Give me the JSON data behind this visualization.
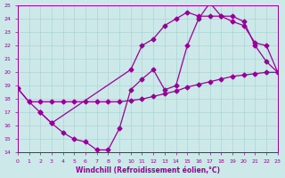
{
  "xlabel": "Windchill (Refroidissement éolien,°C)",
  "ylabel": "",
  "xlim": [
    0,
    23
  ],
  "ylim": [
    14,
    25
  ],
  "xticks": [
    0,
    1,
    2,
    3,
    4,
    5,
    6,
    7,
    8,
    9,
    10,
    11,
    12,
    13,
    14,
    15,
    16,
    17,
    18,
    19,
    20,
    21,
    22,
    23
  ],
  "yticks": [
    14,
    15,
    16,
    17,
    18,
    19,
    20,
    21,
    22,
    23,
    24,
    25
  ],
  "bg_color": "#cce8e8",
  "grid_color": "#aad4d4",
  "line_color": "#990099",
  "line1_x": [
    0,
    1,
    2,
    3,
    4,
    5,
    6,
    7,
    8,
    9,
    10,
    11,
    12,
    13,
    14,
    15,
    16,
    17,
    18,
    19,
    20,
    21,
    22,
    23
  ],
  "line1_y": [
    18.8,
    17.8,
    17.0,
    16.2,
    15.5,
    15.0,
    14.8,
    14.2,
    14.2,
    15.8,
    18.7,
    19.5,
    20.2,
    18.7,
    19.0,
    22.0,
    24.0,
    25.2,
    24.2,
    24.2,
    23.8,
    22.0,
    20.8,
    20.0
  ],
  "line2_x": [
    0,
    1,
    2,
    3,
    4,
    5,
    6,
    7,
    8,
    9,
    10,
    11,
    12,
    13,
    14,
    15,
    16,
    17,
    18,
    19,
    20,
    21,
    22,
    23
  ],
  "line2_y": [
    18.8,
    17.8,
    17.8,
    17.8,
    17.8,
    17.8,
    17.8,
    17.8,
    17.8,
    17.8,
    17.9,
    18.0,
    18.2,
    18.4,
    18.6,
    18.9,
    19.1,
    19.3,
    19.5,
    19.7,
    19.8,
    19.9,
    20.0,
    20.0
  ],
  "line3_x": [
    2,
    3,
    10,
    11,
    12,
    13,
    14,
    15,
    16,
    17,
    18,
    19,
    20,
    21,
    22,
    23
  ],
  "line3_y": [
    17.0,
    16.2,
    20.2,
    22.0,
    22.5,
    23.5,
    24.0,
    24.5,
    24.2,
    24.2,
    24.2,
    23.8,
    23.5,
    22.2,
    22.0,
    20.0
  ]
}
